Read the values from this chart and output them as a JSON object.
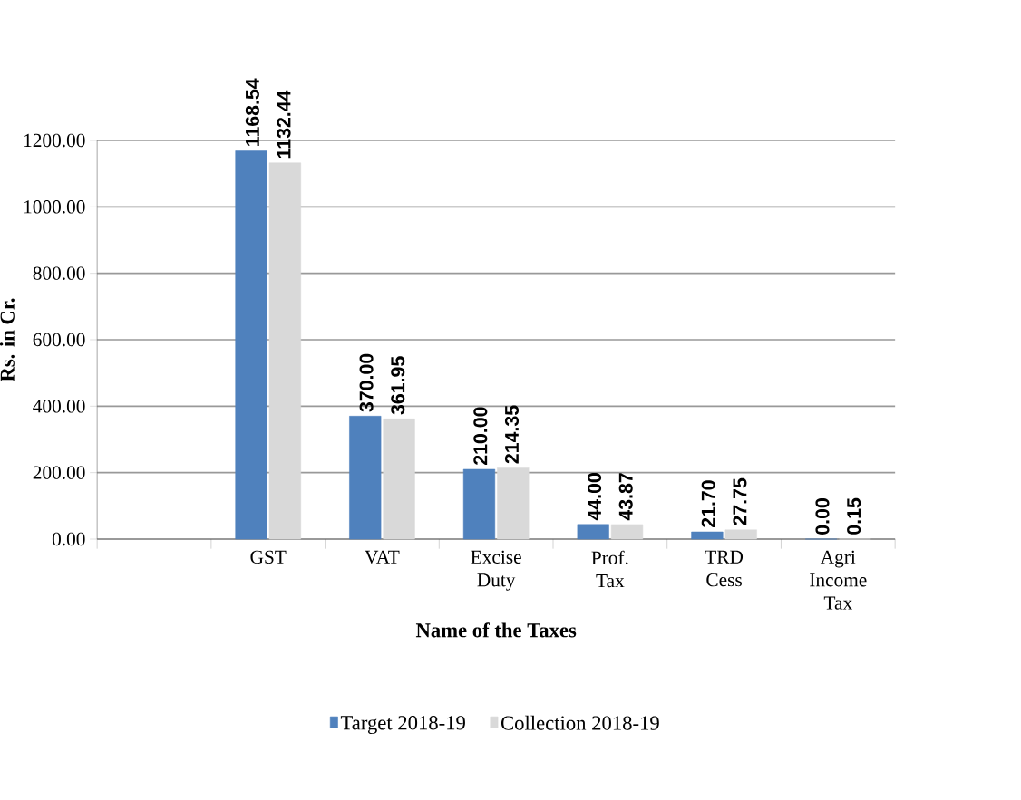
{
  "chart_data": {
    "type": "bar",
    "xlabel": "Name of the Taxes",
    "ylabel": "Rs. in Cr.",
    "categories": [
      null,
      "GST",
      "VAT",
      "Excise Duty",
      "Prof. Tax",
      "TRD Cess",
      "Agri Income Tax"
    ],
    "series": [
      {
        "name": "Target 2018-19",
        "color": "#4f81bd",
        "values": [
          null,
          1168.54,
          370.0,
          210.0,
          44.0,
          21.7,
          0.0
        ],
        "value_labels": [
          null,
          "1168.54",
          "370.00",
          "210.00",
          "44.00",
          "21.70",
          "0.00"
        ]
      },
      {
        "name": "Collection 2018-19",
        "color": "#d9d9d9",
        "values": [
          null,
          1132.44,
          361.95,
          214.35,
          43.87,
          27.75,
          0.15
        ],
        "value_labels": [
          null,
          "1132.44",
          "361.95",
          "214.35",
          "43.87",
          "27.75",
          "0.15"
        ]
      }
    ],
    "ylim": [
      0,
      1200
    ],
    "yticks": [
      {
        "value": 0,
        "label": "0.00"
      },
      {
        "value": 200,
        "label": "200.00"
      },
      {
        "value": 400,
        "label": "400.00"
      },
      {
        "value": 600,
        "label": "600.00"
      },
      {
        "value": 800,
        "label": "800.00"
      },
      {
        "value": 1000,
        "label": "1000.00"
      },
      {
        "value": 1200,
        "label": "1200.00"
      }
    ],
    "grid": "y",
    "legend": "bottom"
  }
}
